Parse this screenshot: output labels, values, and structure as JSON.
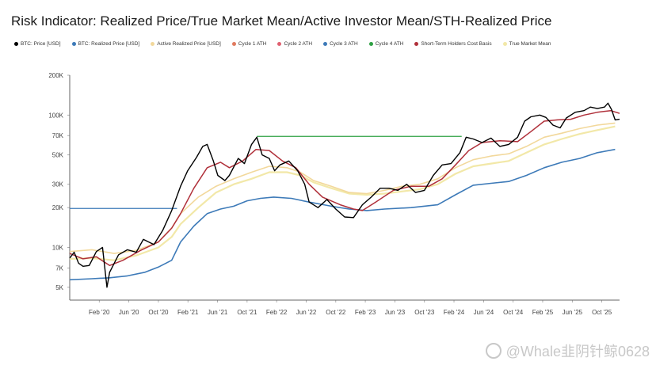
{
  "title": "Risk Indicator: Realized Price/True Market Mean/Active Investor Mean/STH-Realized Price",
  "legend": [
    {
      "label": "BTC: Price [USD]",
      "color": "#000000"
    },
    {
      "label": "BTC: Realized Price [USD]",
      "color": "#3d7ab8"
    },
    {
      "label": "Active Realized Price [USD]",
      "color": "#f2d89b"
    },
    {
      "label": "Cycle 1 ATH",
      "color": "#e07a5f"
    },
    {
      "label": "Cycle 2 ATH",
      "color": "#e06070"
    },
    {
      "label": "Cycle 3 ATH",
      "color": "#3d7ab8"
    },
    {
      "label": "Cycle 4 ATH",
      "color": "#2ea043"
    },
    {
      "label": "Short-Term Holders Cost Basis",
      "color": "#b0303a"
    },
    {
      "label": "True Market Mean",
      "color": "#f2e8a8"
    }
  ],
  "watermark": {
    "text": "@Whale韭阴针鲸0628"
  },
  "chart_data": {
    "type": "line",
    "yscale": "log",
    "ylim": [
      4000,
      200000
    ],
    "y_ticks": [
      {
        "v": 200000,
        "label": "200K"
      },
      {
        "v": 100000,
        "label": "100K"
      },
      {
        "v": 70000,
        "label": "70K"
      },
      {
        "v": 50000,
        "label": "50K"
      },
      {
        "v": 30000,
        "label": "30K"
      },
      {
        "v": 20000,
        "label": "20K"
      },
      {
        "v": 10000,
        "label": "10K"
      },
      {
        "v": 7000,
        "label": "7K"
      },
      {
        "v": 5000,
        "label": "5K"
      }
    ],
    "xlim": [
      2019.75,
      2025.95
    ],
    "x_ticks": [
      {
        "v": 2020.083,
        "label": "Feb '20"
      },
      {
        "v": 2020.417,
        "label": "Jun '20"
      },
      {
        "v": 2020.75,
        "label": "Oct '20"
      },
      {
        "v": 2021.083,
        "label": "Feb '21"
      },
      {
        "v": 2021.417,
        "label": "Jun '21"
      },
      {
        "v": 2021.75,
        "label": "Oct '21"
      },
      {
        "v": 2022.083,
        "label": "Feb '22"
      },
      {
        "v": 2022.417,
        "label": "Jun '22"
      },
      {
        "v": 2022.75,
        "label": "Oct '22"
      },
      {
        "v": 2023.083,
        "label": "Feb '23"
      },
      {
        "v": 2023.417,
        "label": "Jun '23"
      },
      {
        "v": 2023.75,
        "label": "Oct '23"
      },
      {
        "v": 2024.083,
        "label": "Feb '24"
      },
      {
        "v": 2024.417,
        "label": "Jun '24"
      },
      {
        "v": 2024.75,
        "label": "Oct '24"
      },
      {
        "v": 2025.083,
        "label": "Feb '25"
      },
      {
        "v": 2025.417,
        "label": "Jun '25"
      },
      {
        "v": 2025.75,
        "label": "Oct '25"
      }
    ],
    "hlines": [
      {
        "name": "Cycle 3 ATH",
        "y": 19700,
        "x": [
          2019.75,
          2020.96
        ],
        "color": "#3d7ab8"
      },
      {
        "name": "Cycle 4 ATH",
        "y": 69000,
        "x": [
          2021.86,
          2024.17
        ],
        "color": "#2ea043"
      }
    ],
    "series": [
      {
        "name": "True Market Mean",
        "color": "#f2e8a8",
        "width": 2.2,
        "points": [
          [
            2019.75,
            8200
          ],
          [
            2020.0,
            8300
          ],
          [
            2020.25,
            8000
          ],
          [
            2020.5,
            8700
          ],
          [
            2020.75,
            10000
          ],
          [
            2020.9,
            12000
          ],
          [
            2021.0,
            15000
          ],
          [
            2021.2,
            20000
          ],
          [
            2021.4,
            26000
          ],
          [
            2021.6,
            30000
          ],
          [
            2021.8,
            33000
          ],
          [
            2022.0,
            37000
          ],
          [
            2022.2,
            37000
          ],
          [
            2022.35,
            35000
          ],
          [
            2022.5,
            31000
          ],
          [
            2022.7,
            28000
          ],
          [
            2022.9,
            25500
          ],
          [
            2023.1,
            25000
          ],
          [
            2023.3,
            25500
          ],
          [
            2023.5,
            26500
          ],
          [
            2023.7,
            27500
          ],
          [
            2023.9,
            30000
          ],
          [
            2024.1,
            36000
          ],
          [
            2024.3,
            41000
          ],
          [
            2024.5,
            43000
          ],
          [
            2024.7,
            45000
          ],
          [
            2024.9,
            52000
          ],
          [
            2025.1,
            60000
          ],
          [
            2025.3,
            66000
          ],
          [
            2025.5,
            72000
          ],
          [
            2025.7,
            77000
          ],
          [
            2025.9,
            82000
          ]
        ]
      },
      {
        "name": "Active Realized Price [USD]",
        "color": "#f2d89b",
        "width": 1.6,
        "points": [
          [
            2019.75,
            9300
          ],
          [
            2020.0,
            9600
          ],
          [
            2020.25,
            9000
          ],
          [
            2020.5,
            9500
          ],
          [
            2020.75,
            11000
          ],
          [
            2020.9,
            14000
          ],
          [
            2021.0,
            18000
          ],
          [
            2021.2,
            24000
          ],
          [
            2021.4,
            29000
          ],
          [
            2021.6,
            33000
          ],
          [
            2021.8,
            37000
          ],
          [
            2022.0,
            41000
          ],
          [
            2022.2,
            40000
          ],
          [
            2022.35,
            37000
          ],
          [
            2022.5,
            32000
          ],
          [
            2022.7,
            29000
          ],
          [
            2022.9,
            26000
          ],
          [
            2023.1,
            25500
          ],
          [
            2023.3,
            27000
          ],
          [
            2023.5,
            29000
          ],
          [
            2023.7,
            30000
          ],
          [
            2023.9,
            33000
          ],
          [
            2024.1,
            40000
          ],
          [
            2024.3,
            46000
          ],
          [
            2024.5,
            49000
          ],
          [
            2024.7,
            51000
          ],
          [
            2024.9,
            58000
          ],
          [
            2025.1,
            68000
          ],
          [
            2025.3,
            73000
          ],
          [
            2025.5,
            79000
          ],
          [
            2025.7,
            84000
          ],
          [
            2025.9,
            87000
          ]
        ]
      },
      {
        "name": "BTC: Realized Price [USD]",
        "color": "#3d7ab8",
        "width": 1.6,
        "points": [
          [
            2019.75,
            5700
          ],
          [
            2020.0,
            5800
          ],
          [
            2020.2,
            5900
          ],
          [
            2020.4,
            6100
          ],
          [
            2020.6,
            6500
          ],
          [
            2020.75,
            7100
          ],
          [
            2020.9,
            8000
          ],
          [
            2021.0,
            11000
          ],
          [
            2021.15,
            14500
          ],
          [
            2021.3,
            18000
          ],
          [
            2021.45,
            19500
          ],
          [
            2021.6,
            20500
          ],
          [
            2021.75,
            22500
          ],
          [
            2021.9,
            23500
          ],
          [
            2022.05,
            24000
          ],
          [
            2022.25,
            23500
          ],
          [
            2022.45,
            22000
          ],
          [
            2022.7,
            20500
          ],
          [
            2022.9,
            19500
          ],
          [
            2023.1,
            19000
          ],
          [
            2023.3,
            19500
          ],
          [
            2023.6,
            20000
          ],
          [
            2023.9,
            21000
          ],
          [
            2024.1,
            25000
          ],
          [
            2024.3,
            29500
          ],
          [
            2024.5,
            30500
          ],
          [
            2024.7,
            31500
          ],
          [
            2024.9,
            35000
          ],
          [
            2025.1,
            40000
          ],
          [
            2025.3,
            44000
          ],
          [
            2025.5,
            47000
          ],
          [
            2025.7,
            52000
          ],
          [
            2025.9,
            55000
          ]
        ]
      },
      {
        "name": "Short-Term Holders Cost Basis",
        "color": "#b0303a",
        "width": 1.5,
        "points": [
          [
            2019.75,
            9000
          ],
          [
            2019.9,
            8200
          ],
          [
            2020.05,
            8500
          ],
          [
            2020.2,
            7300
          ],
          [
            2020.35,
            8000
          ],
          [
            2020.55,
            9500
          ],
          [
            2020.75,
            11000
          ],
          [
            2020.9,
            14000
          ],
          [
            2021.0,
            18000
          ],
          [
            2021.15,
            28000
          ],
          [
            2021.3,
            40000
          ],
          [
            2021.45,
            44000
          ],
          [
            2021.55,
            40000
          ],
          [
            2021.7,
            45000
          ],
          [
            2021.85,
            55000
          ],
          [
            2022.0,
            54000
          ],
          [
            2022.15,
            45000
          ],
          [
            2022.3,
            40000
          ],
          [
            2022.45,
            30000
          ],
          [
            2022.6,
            24000
          ],
          [
            2022.8,
            21000
          ],
          [
            2022.95,
            19500
          ],
          [
            2023.05,
            19000
          ],
          [
            2023.2,
            22000
          ],
          [
            2023.4,
            27000
          ],
          [
            2023.6,
            29000
          ],
          [
            2023.8,
            29000
          ],
          [
            2023.95,
            33000
          ],
          [
            2024.1,
            42000
          ],
          [
            2024.25,
            54000
          ],
          [
            2024.4,
            62000
          ],
          [
            2024.6,
            64000
          ],
          [
            2024.8,
            63000
          ],
          [
            2024.95,
            75000
          ],
          [
            2025.1,
            90000
          ],
          [
            2025.25,
            92000
          ],
          [
            2025.4,
            93000
          ],
          [
            2025.55,
            100000
          ],
          [
            2025.7,
            105000
          ],
          [
            2025.85,
            108000
          ],
          [
            2025.95,
            103000
          ]
        ]
      },
      {
        "name": "BTC: Price [USD]",
        "color": "#000000",
        "width": 1.4,
        "points": [
          [
            2019.75,
            8300
          ],
          [
            2019.8,
            9200
          ],
          [
            2019.85,
            7600
          ],
          [
            2019.9,
            7200
          ],
          [
            2019.97,
            7300
          ],
          [
            2020.05,
            9300
          ],
          [
            2020.12,
            10000
          ],
          [
            2020.17,
            5000
          ],
          [
            2020.2,
            6500
          ],
          [
            2020.3,
            8800
          ],
          [
            2020.4,
            9600
          ],
          [
            2020.5,
            9200
          ],
          [
            2020.58,
            11500
          ],
          [
            2020.7,
            10500
          ],
          [
            2020.8,
            13500
          ],
          [
            2020.9,
            19000
          ],
          [
            2021.0,
            29000
          ],
          [
            2021.08,
            38000
          ],
          [
            2021.18,
            48000
          ],
          [
            2021.25,
            58000
          ],
          [
            2021.3,
            60000
          ],
          [
            2021.37,
            45000
          ],
          [
            2021.42,
            35000
          ],
          [
            2021.5,
            32000
          ],
          [
            2021.55,
            35000
          ],
          [
            2021.65,
            47000
          ],
          [
            2021.72,
            43000
          ],
          [
            2021.8,
            60000
          ],
          [
            2021.86,
            68000
          ],
          [
            2021.92,
            50000
          ],
          [
            2022.0,
            47000
          ],
          [
            2022.06,
            38000
          ],
          [
            2022.12,
            42000
          ],
          [
            2022.22,
            45000
          ],
          [
            2022.32,
            38000
          ],
          [
            2022.4,
            30000
          ],
          [
            2022.45,
            22000
          ],
          [
            2022.55,
            20000
          ],
          [
            2022.65,
            23000
          ],
          [
            2022.75,
            19500
          ],
          [
            2022.85,
            17000
          ],
          [
            2022.95,
            16800
          ],
          [
            2023.05,
            21000
          ],
          [
            2023.15,
            24000
          ],
          [
            2023.25,
            28000
          ],
          [
            2023.35,
            28000
          ],
          [
            2023.45,
            27000
          ],
          [
            2023.55,
            30000
          ],
          [
            2023.65,
            26000
          ],
          [
            2023.75,
            27000
          ],
          [
            2023.85,
            35000
          ],
          [
            2023.95,
            42000
          ],
          [
            2024.05,
            43000
          ],
          [
            2024.15,
            52000
          ],
          [
            2024.22,
            68000
          ],
          [
            2024.3,
            66000
          ],
          [
            2024.4,
            62000
          ],
          [
            2024.5,
            67000
          ],
          [
            2024.6,
            58000
          ],
          [
            2024.7,
            60000
          ],
          [
            2024.8,
            68000
          ],
          [
            2024.88,
            90000
          ],
          [
            2024.95,
            97000
          ],
          [
            2025.05,
            100000
          ],
          [
            2025.12,
            96000
          ],
          [
            2025.2,
            84000
          ],
          [
            2025.28,
            80000
          ],
          [
            2025.35,
            95000
          ],
          [
            2025.45,
            105000
          ],
          [
            2025.55,
            108000
          ],
          [
            2025.62,
            115000
          ],
          [
            2025.7,
            112000
          ],
          [
            2025.78,
            115000
          ],
          [
            2025.82,
            123000
          ],
          [
            2025.86,
            110000
          ],
          [
            2025.9,
            92000
          ],
          [
            2025.95,
            93000
          ]
        ]
      }
    ]
  }
}
